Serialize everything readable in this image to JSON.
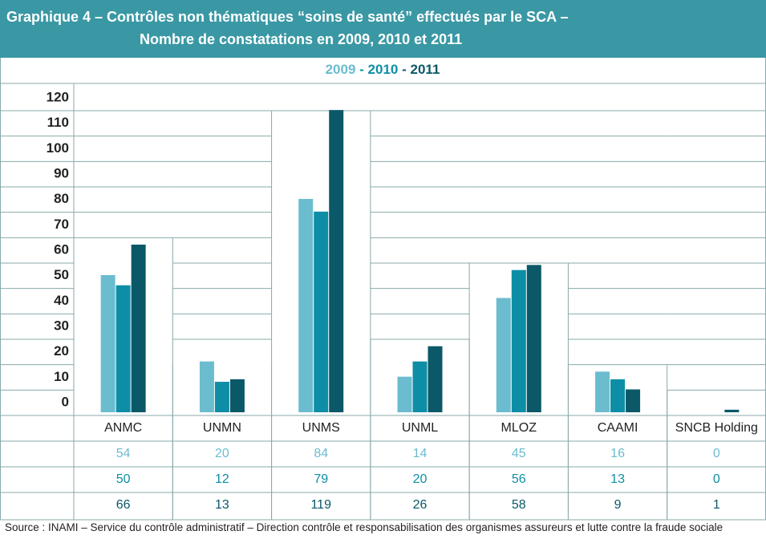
{
  "chart_data": {
    "type": "bar",
    "title": [
      "Graphique 4 – Contrôles non thématiques “soins de santé” effectués par le SCA –",
      "Nombre de constatations en 2009, 2010 et 2011"
    ],
    "legend_separator": "-",
    "categories": [
      "ANMC",
      "UNMN",
      "UNMS",
      "UNML",
      "MLOZ",
      "CAAMI",
      "SNCB Holding"
    ],
    "series": [
      {
        "name": "2009",
        "color": "#6bbccf",
        "values": [
          54,
          20,
          84,
          14,
          45,
          16,
          0
        ]
      },
      {
        "name": "2010",
        "color": "#0e8ea6",
        "values": [
          50,
          12,
          79,
          20,
          56,
          13,
          0
        ]
      },
      {
        "name": "2011",
        "color": "#0a5868",
        "values": [
          66,
          13,
          119,
          26,
          58,
          9,
          1
        ]
      }
    ],
    "ylim": [
      0,
      120
    ],
    "yticks": [
      0,
      10,
      20,
      30,
      40,
      50,
      60,
      70,
      80,
      90,
      100,
      110,
      120
    ],
    "grid": true,
    "source": "Source : INAMI – Service du contrôle administratif – Direction contrôle et responsabilisation des organismes assureurs et lutte contre la fraude sociale"
  }
}
